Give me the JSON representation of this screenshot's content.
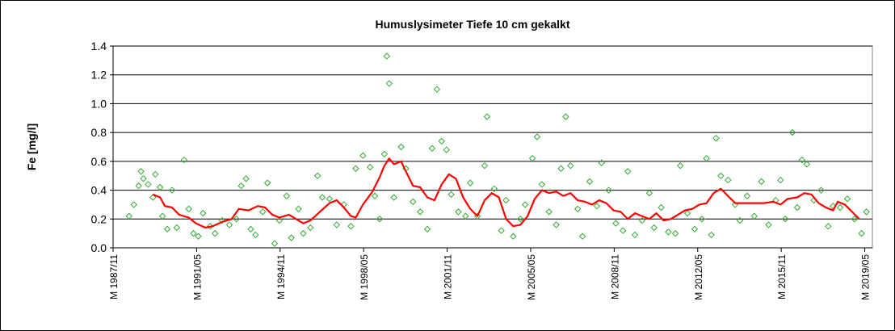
{
  "chart_data": {
    "type": "scatter",
    "title": "Humuslysimeter Tiefe  10 cm   gekalkt",
    "y_label": "Fe [mg/l]",
    "xlim": [
      1987.83,
      2019.65
    ],
    "xticks": [
      {
        "value": 1987.83,
        "label": "M 1987/11"
      },
      {
        "value": 1991.33,
        "label": "M 1991/05"
      },
      {
        "value": 1994.83,
        "label": "M 1994/11"
      },
      {
        "value": 1998.33,
        "label": "M 1998/05"
      },
      {
        "value": 2001.83,
        "label": "M 2001/11"
      },
      {
        "value": 2005.33,
        "label": "M 2005/05"
      },
      {
        "value": 2008.83,
        "label": "M 2008/11"
      },
      {
        "value": 2012.33,
        "label": "M 2012/05"
      },
      {
        "value": 2015.83,
        "label": "M 2015/11"
      },
      {
        "value": 2019.33,
        "label": "M 2019/05"
      }
    ],
    "ylim": [
      0,
      1.4
    ],
    "yticks": [
      {
        "value": 0,
        "label": "0.0"
      },
      0.2,
      0.4,
      0.6,
      0.8,
      {
        "value": 1,
        "label": "1.0"
      },
      1.2,
      1.4
    ],
    "grid": true,
    "series": [
      {
        "type": "scatter",
        "color": "#33aa33",
        "x": [
          1988.5,
          1988.7,
          1988.9,
          1989.0,
          1989.1,
          1989.3,
          1989.5,
          1989.6,
          1989.8,
          1989.9,
          1990.1,
          1990.3,
          1990.5,
          1990.8,
          1991.0,
          1991.2,
          1991.4,
          1991.6,
          1991.9,
          1992.1,
          1992.4,
          1992.7,
          1993.0,
          1993.2,
          1993.4,
          1993.6,
          1993.8,
          1994.1,
          1994.3,
          1994.6,
          1994.8,
          1995.1,
          1995.3,
          1995.6,
          1995.8,
          1996.1,
          1996.4,
          1996.6,
          1996.9,
          1997.2,
          1997.5,
          1997.8,
          1998.0,
          1998.3,
          1998.6,
          1998.8,
          1999.0,
          1999.2,
          1999.3,
          1999.4,
          1999.6,
          1999.9,
          2000.1,
          2000.4,
          2000.7,
          2001.0,
          2001.2,
          2001.4,
          2001.6,
          2001.8,
          2002.0,
          2002.3,
          2002.6,
          2002.8,
          2003.1,
          2003.4,
          2003.5,
          2003.8,
          2004.1,
          2004.3,
          2004.6,
          2004.9,
          2005.1,
          2005.4,
          2005.6,
          2005.8,
          2006.1,
          2006.4,
          2006.6,
          2006.8,
          2007.0,
          2007.3,
          2007.5,
          2007.8,
          2008.1,
          2008.3,
          2008.6,
          2008.9,
          2009.2,
          2009.4,
          2009.7,
          2010.0,
          2010.3,
          2010.5,
          2010.8,
          2011.1,
          2011.4,
          2011.6,
          2011.9,
          2012.2,
          2012.5,
          2012.7,
          2012.9,
          2013.1,
          2013.3,
          2013.6,
          2013.9,
          2014.1,
          2014.4,
          2014.7,
          2015.0,
          2015.3,
          2015.6,
          2015.8,
          2016.0,
          2016.3,
          2016.5,
          2016.7,
          2016.9,
          2017.2,
          2017.5,
          2017.8,
          2018.0,
          2018.3,
          2018.6,
          2018.9,
          2019.2,
          2019.4
        ],
        "values": [
          0.22,
          0.3,
          0.43,
          0.53,
          0.48,
          0.44,
          0.35,
          0.51,
          0.42,
          0.22,
          0.13,
          0.4,
          0.14,
          0.61,
          0.27,
          0.1,
          0.08,
          0.24,
          0.15,
          0.1,
          0.19,
          0.16,
          0.2,
          0.43,
          0.48,
          0.13,
          0.09,
          0.25,
          0.45,
          0.03,
          0.19,
          0.36,
          0.07,
          0.27,
          0.1,
          0.14,
          0.5,
          0.35,
          0.34,
          0.16,
          0.3,
          0.15,
          0.55,
          0.64,
          0.56,
          0.36,
          0.2,
          0.65,
          1.33,
          1.14,
          0.35,
          0.7,
          0.55,
          0.32,
          0.25,
          0.13,
          0.69,
          1.1,
          0.74,
          0.68,
          0.37,
          0.25,
          0.22,
          0.45,
          0.22,
          0.57,
          0.91,
          0.41,
          0.12,
          0.33,
          0.08,
          0.2,
          0.3,
          0.62,
          0.77,
          0.44,
          0.25,
          0.16,
          0.55,
          0.91,
          0.57,
          0.27,
          0.08,
          0.46,
          0.29,
          0.59,
          0.4,
          0.17,
          0.12,
          0.53,
          0.09,
          0.19,
          0.38,
          0.14,
          0.28,
          0.11,
          0.1,
          0.57,
          0.24,
          0.13,
          0.2,
          0.62,
          0.09,
          0.76,
          0.5,
          0.47,
          0.3,
          0.19,
          0.36,
          0.22,
          0.46,
          0.16,
          0.33,
          0.47,
          0.2,
          0.8,
          0.28,
          0.61,
          0.58,
          0.33,
          0.4,
          0.15,
          0.29,
          0.28,
          0.34,
          0.2,
          0.1,
          0.25
        ]
      },
      {
        "type": "line",
        "color": "#ff0000",
        "x": [
          1989.5,
          1989.8,
          1990.0,
          1990.3,
          1990.6,
          1991.0,
          1991.3,
          1991.7,
          1992.0,
          1992.4,
          1992.8,
          1993.1,
          1993.5,
          1993.9,
          1994.2,
          1994.5,
          1994.8,
          1995.2,
          1995.5,
          1995.8,
          1996.1,
          1996.5,
          1996.9,
          1997.2,
          1997.5,
          1997.8,
          1998.0,
          1998.3,
          1998.7,
          1999.0,
          1999.2,
          1999.4,
          1999.6,
          1999.9,
          2000.1,
          2000.4,
          2000.7,
          2001.0,
          2001.3,
          2001.6,
          2001.9,
          2002.2,
          2002.5,
          2002.8,
          2003.1,
          2003.4,
          2003.7,
          2004.0,
          2004.3,
          2004.6,
          2004.9,
          2005.2,
          2005.5,
          2005.8,
          2006.1,
          2006.4,
          2006.7,
          2007.0,
          2007.3,
          2007.6,
          2007.9,
          2008.2,
          2008.5,
          2008.8,
          2009.1,
          2009.4,
          2009.7,
          2010.0,
          2010.3,
          2010.6,
          2010.9,
          2011.2,
          2011.5,
          2011.8,
          2012.1,
          2012.4,
          2012.7,
          2013.0,
          2013.3,
          2013.6,
          2013.9,
          2014.3,
          2014.7,
          2015.1,
          2015.5,
          2015.8,
          2016.1,
          2016.5,
          2016.8,
          2017.1,
          2017.4,
          2017.7,
          2018.0,
          2018.2,
          2018.5,
          2018.8,
          2019.1
        ],
        "values": [
          0.37,
          0.35,
          0.29,
          0.28,
          0.23,
          0.21,
          0.17,
          0.14,
          0.15,
          0.18,
          0.2,
          0.27,
          0.26,
          0.29,
          0.28,
          0.23,
          0.21,
          0.23,
          0.2,
          0.17,
          0.19,
          0.25,
          0.31,
          0.33,
          0.28,
          0.22,
          0.21,
          0.3,
          0.39,
          0.49,
          0.57,
          0.62,
          0.58,
          0.6,
          0.53,
          0.43,
          0.42,
          0.35,
          0.33,
          0.44,
          0.51,
          0.48,
          0.35,
          0.27,
          0.22,
          0.33,
          0.38,
          0.35,
          0.2,
          0.15,
          0.16,
          0.22,
          0.34,
          0.4,
          0.38,
          0.39,
          0.36,
          0.38,
          0.33,
          0.32,
          0.3,
          0.33,
          0.31,
          0.26,
          0.25,
          0.2,
          0.24,
          0.22,
          0.2,
          0.24,
          0.19,
          0.2,
          0.23,
          0.26,
          0.27,
          0.3,
          0.31,
          0.38,
          0.41,
          0.36,
          0.31,
          0.31,
          0.31,
          0.31,
          0.32,
          0.3,
          0.34,
          0.35,
          0.38,
          0.37,
          0.31,
          0.28,
          0.26,
          0.32,
          0.3,
          0.25,
          0.2
        ]
      }
    ]
  }
}
